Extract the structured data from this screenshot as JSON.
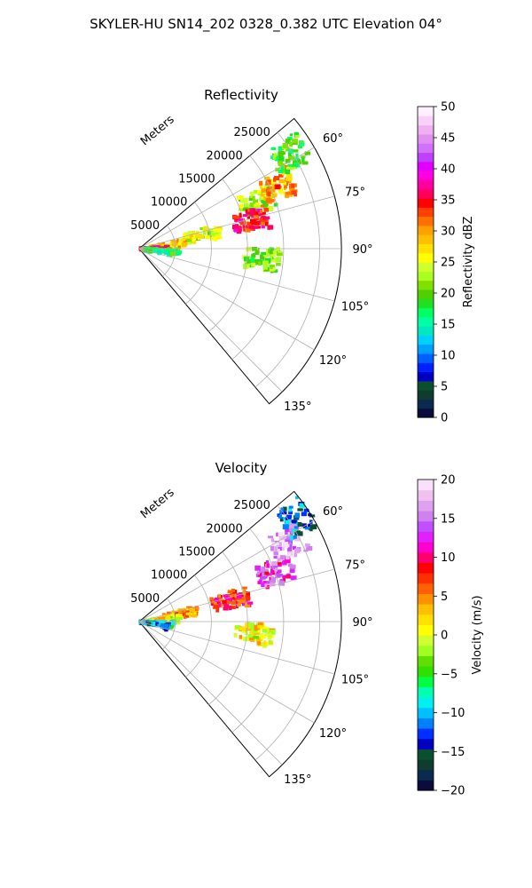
{
  "figure": {
    "title": "SKYLER-HU  SN14_202  0328_0.382 UTC Elevation 04°"
  },
  "chart_data": [
    {
      "type": "polar-sector",
      "title": "Reflectivity",
      "radial_label": "Meters",
      "theta_range_deg": [
        50,
        140
      ],
      "r_max": 28000,
      "r_ticks": [
        5000,
        10000,
        15000,
        20000,
        25000
      ],
      "r_tick_labels": [
        "5000",
        "10000",
        "15000",
        "20000",
        "25000"
      ],
      "theta_ticks": [
        60,
        75,
        90,
        105,
        120,
        135
      ],
      "theta_tick_labels": [
        "60°",
        "75°",
        "90°",
        "105°",
        "120°",
        "135°"
      ],
      "grid": true,
      "colorbar": {
        "label": "Reflectivity dBZ",
        "vmin": 0,
        "vmax": 50,
        "ticks": [
          0,
          5,
          10,
          15,
          20,
          25,
          30,
          35,
          40,
          45,
          50
        ],
        "tick_labels": [
          "0",
          "5",
          "10",
          "15",
          "20",
          "25",
          "30",
          "35",
          "40",
          "45",
          "50"
        ],
        "colors": [
          "#0b0b3c",
          "#0a2a50",
          "#103c30",
          "#0a5030",
          "#0000c0",
          "#0020ff",
          "#0060ff",
          "#00a0ff",
          "#00d0ff",
          "#00e8c0",
          "#00ffa0",
          "#00ff60",
          "#20e020",
          "#50d000",
          "#80e000",
          "#a8ff20",
          "#d0ff30",
          "#ffff00",
          "#ffe000",
          "#ffc000",
          "#ffa000",
          "#ff7000",
          "#ff4000",
          "#ff0000",
          "#ff0060",
          "#ff00a0",
          "#ff00e0",
          "#e000ff",
          "#c040ff",
          "#d070ff",
          "#e090f0",
          "#f0b0f0",
          "#f8d0f8",
          "#fff0ff"
        ]
      },
      "regions": [
        {
          "theta": 68,
          "r": 17500,
          "value": 22
        },
        {
          "theta": 66,
          "r": 21000,
          "value": 30
        },
        {
          "theta": 76,
          "r": 16000,
          "value": 35
        },
        {
          "theta": 78,
          "r": 9000,
          "value": 24
        },
        {
          "theta": 84,
          "r": 4000,
          "value": 28
        },
        {
          "theta": 91,
          "r": 2000,
          "value": 36
        },
        {
          "theta": 96,
          "r": 3000,
          "value": 17
        },
        {
          "theta": 95,
          "r": 17000,
          "value": 21
        },
        {
          "theta": 58,
          "r": 24500,
          "value": 20
        }
      ]
    },
    {
      "type": "polar-sector",
      "title": "Velocity",
      "radial_label": "Meters",
      "theta_range_deg": [
        50,
        140
      ],
      "r_max": 28000,
      "r_ticks": [
        5000,
        10000,
        15000,
        20000,
        25000
      ],
      "r_tick_labels": [
        "5000",
        "10000",
        "15000",
        "20000",
        "25000"
      ],
      "theta_ticks": [
        60,
        75,
        90,
        105,
        120,
        135
      ],
      "theta_tick_labels": [
        "60°",
        "75°",
        "90°",
        "105°",
        "120°",
        "135°"
      ],
      "grid": true,
      "colorbar": {
        "label": "Velocity (m/s)",
        "vmin": -20,
        "vmax": 20,
        "ticks": [
          -20,
          -15,
          -10,
          -5,
          0,
          5,
          10,
          15,
          20
        ],
        "tick_labels": [
          "−20",
          "−15",
          "−10",
          "−5",
          "0",
          "5",
          "10",
          "15",
          "20"
        ],
        "colors": [
          "#0b0b3c",
          "#0a2a50",
          "#103c30",
          "#0a5030",
          "#0000c0",
          "#0030ff",
          "#0080ff",
          "#00c0ff",
          "#00f0f0",
          "#00ffb0",
          "#00ff40",
          "#30e000",
          "#60e000",
          "#a0ff20",
          "#d0ff30",
          "#ffff00",
          "#ffe000",
          "#ffc000",
          "#ff9000",
          "#ff6000",
          "#ff3000",
          "#ff0000",
          "#ff0070",
          "#ff00d0",
          "#e020ff",
          "#c050ff",
          "#d080f0",
          "#e0a0f0",
          "#f0c0f0",
          "#fae0fa"
        ]
      },
      "regions": [
        {
          "theta": 70,
          "r": 20000,
          "value": 13
        },
        {
          "theta": 62,
          "r": 23500,
          "value": 17
        },
        {
          "theta": 77,
          "r": 13000,
          "value": 8
        },
        {
          "theta": 80,
          "r": 6000,
          "value": 4
        },
        {
          "theta": 86,
          "r": 3000,
          "value": 1
        },
        {
          "theta": 96,
          "r": 2500,
          "value": -6
        },
        {
          "theta": 100,
          "r": 1500,
          "value": -11
        },
        {
          "theta": 96,
          "r": 16000,
          "value": 1
        },
        {
          "theta": 57,
          "r": 26500,
          "value": -12
        }
      ]
    }
  ]
}
